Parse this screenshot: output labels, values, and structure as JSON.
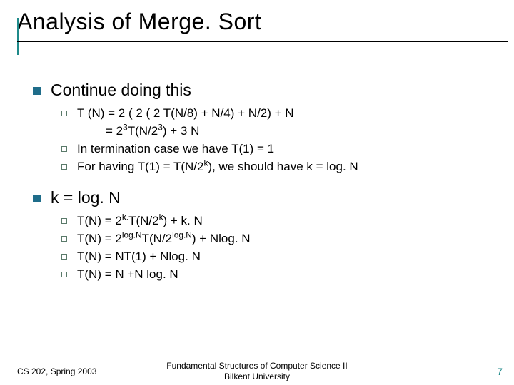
{
  "colors": {
    "accent": "#1f8a8a",
    "bullet": "#1f6d8a",
    "sub_bullet_border": "#5a7a6a",
    "underline": "#000000",
    "background": "#ffffff"
  },
  "title": "Analysis of Merge. Sort",
  "sections": [
    {
      "heading": "Continue doing this",
      "items": [
        {
          "line1": "T (N) = 2 ( 2 ( 2 T(N/8) + N/4) + N/2) + N",
          "line2_html": "= 2<sup>3</sup>T(N/2<sup>3</sup>) + 3 N"
        },
        {
          "line1": "In termination case we have T(1) = 1"
        },
        {
          "line1_html": "For having T(1) = T(N/2<sup>k</sup>), we should have k = log. N"
        }
      ]
    },
    {
      "heading": "k = log. N",
      "items": [
        {
          "line1_html": "T(N) = 2<sup>k.</sup>T(N/2<sup>k</sup>) + k. N"
        },
        {
          "line1_html": "T(N) = 2<sup>log.N</sup>T(N/2<sup>log.N</sup>) + Nlog. N"
        },
        {
          "line1": "T(N) = NT(1) + Nlog. N"
        },
        {
          "line1_html": "<span class=\"underline\">T(N) = N +N log. N</span>"
        }
      ]
    }
  ],
  "footer": {
    "left": "CS 202, Spring 2003",
    "center_line1": "Fundamental Structures of Computer Science II",
    "center_line2": "Bilkent University",
    "page": "7"
  }
}
